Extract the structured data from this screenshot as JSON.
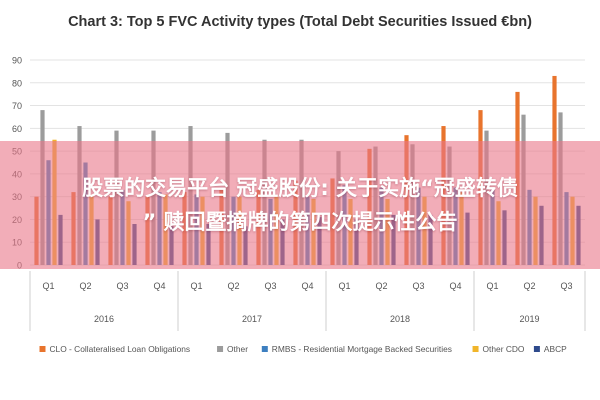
{
  "colors": {
    "clo": "#e8742d",
    "other": "#9c9c9c",
    "rmbs": "#3d7fc0",
    "other_cdo": "#f1b52a",
    "abcp": "#2e4a8c",
    "axis_text": "#555555",
    "title_text": "#333333",
    "grid": "#e3e3e3",
    "banner_text": "#ffffff"
  },
  "chart_data": {
    "type": "bar",
    "title": "Chart 3: Top 5 FVC Activity types (Total Debt Securities Issued €bn)",
    "xlabel": "",
    "ylabel": "",
    "ylim": [
      0,
      90
    ],
    "yticks": [
      0,
      10,
      20,
      30,
      40,
      50,
      60,
      70,
      80,
      90
    ],
    "grid": true,
    "legend_position": "bottom",
    "categories": [
      "Q1",
      "Q2",
      "Q3",
      "Q4",
      "Q1",
      "Q2",
      "Q3",
      "Q4",
      "Q1",
      "Q2",
      "Q3",
      "Q4",
      "Q1",
      "Q2",
      "Q3"
    ],
    "category_groups": [
      {
        "label": "2016",
        "count": 4
      },
      {
        "label": "2017",
        "count": 4
      },
      {
        "label": "2018",
        "count": 4
      },
      {
        "label": "2019",
        "count": 3
      }
    ],
    "series": [
      {
        "key": "clo",
        "name": "CLO - Collateralised Loan Obligations",
        "color_key": "clo",
        "values": [
          30,
          32,
          30,
          30,
          32,
          33,
          33,
          37,
          38,
          51,
          57,
          61,
          68,
          76,
          83
        ]
      },
      {
        "key": "other",
        "name": "Other",
        "color_key": "other",
        "values": [
          68,
          61,
          59,
          59,
          61,
          58,
          55,
          55,
          50,
          52,
          53,
          52,
          59,
          66,
          67
        ]
      },
      {
        "key": "rmbs",
        "name": "RMBS - Residential Mortgage Backed Securities",
        "color_key": "rmbs",
        "values": [
          46,
          45,
          33,
          32,
          31,
          30,
          29,
          30,
          35,
          34,
          34,
          34,
          33,
          33,
          32
        ]
      },
      {
        "key": "other_cdo",
        "name": "Other CDO",
        "color_key": "other_cdo",
        "values": [
          55,
          31,
          28,
          31,
          30,
          30,
          30,
          29,
          29,
          29,
          30,
          32,
          28,
          30,
          30
        ]
      },
      {
        "key": "abcp",
        "name": "ABCP",
        "color_key": "abcp",
        "values": [
          22,
          20,
          18,
          17,
          18,
          17,
          20,
          21,
          20,
          22,
          22,
          23,
          24,
          26,
          26
        ]
      }
    ]
  },
  "overlay": {
    "line1": "股票的交易平台 冠盛股份: 关于实施“冠盛转债",
    "line2": "” 赎回暨摘牌的第四次提示性公告"
  }
}
